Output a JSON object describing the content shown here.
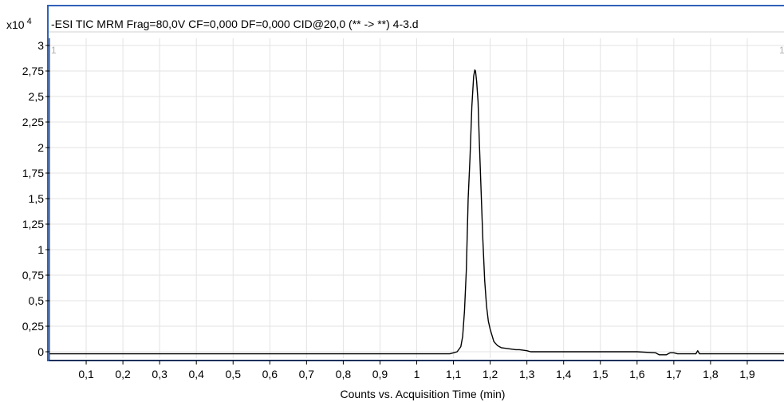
{
  "header": {
    "scale_label": "x10",
    "scale_exponent": "4",
    "title": "-ESI TIC MRM Frag=80,0V CF=0,000 DF=0,000 CID@20,0 (** -> **) 4-3.d",
    "pane_number_left": "1",
    "pane_number_right": "1"
  },
  "colors": {
    "frame_border": "#2f62b8",
    "trace": "#000000",
    "grid": "#e3e3e3",
    "baseline": "#000000"
  },
  "chart_data": {
    "type": "line",
    "title": "-ESI TIC MRM Frag=80,0V CF=0,000 DF=0,000 CID@20,0 (** -> **) 4-3.d",
    "xlabel": "Counts vs. Acquisition Time (min)",
    "ylabel": "",
    "y_multiplier": "x10^4",
    "xlim": [
      0,
      2.0
    ],
    "ylim": [
      -0.05,
      3.0
    ],
    "grid": true,
    "x_ticks": [
      {
        "value": 0.1,
        "label": "0,1"
      },
      {
        "value": 0.2,
        "label": "0,2"
      },
      {
        "value": 0.3,
        "label": "0,3"
      },
      {
        "value": 0.4,
        "label": "0,4"
      },
      {
        "value": 0.5,
        "label": "0,5"
      },
      {
        "value": 0.6,
        "label": "0,6"
      },
      {
        "value": 0.7,
        "label": "0,7"
      },
      {
        "value": 0.8,
        "label": "0,8"
      },
      {
        "value": 0.9,
        "label": "0,9"
      },
      {
        "value": 1.0,
        "label": "1"
      },
      {
        "value": 1.1,
        "label": "1,1"
      },
      {
        "value": 1.2,
        "label": "1,2"
      },
      {
        "value": 1.3,
        "label": "1,3"
      },
      {
        "value": 1.4,
        "label": "1,4"
      },
      {
        "value": 1.5,
        "label": "1,5"
      },
      {
        "value": 1.6,
        "label": "1,6"
      },
      {
        "value": 1.7,
        "label": "1,7"
      },
      {
        "value": 1.8,
        "label": "1,8"
      },
      {
        "value": 1.9,
        "label": "1,9"
      }
    ],
    "y_ticks": [
      {
        "value": 0,
        "label": "0"
      },
      {
        "value": 0.25,
        "label": "0,25"
      },
      {
        "value": 0.5,
        "label": "0,5"
      },
      {
        "value": 0.75,
        "label": "0,75"
      },
      {
        "value": 1.0,
        "label": "1"
      },
      {
        "value": 1.25,
        "label": "1,25"
      },
      {
        "value": 1.5,
        "label": "1,5"
      },
      {
        "value": 1.75,
        "label": "1,75"
      },
      {
        "value": 2.0,
        "label": "2"
      },
      {
        "value": 2.25,
        "label": "2,25"
      },
      {
        "value": 2.5,
        "label": "2,5"
      },
      {
        "value": 2.75,
        "label": "2,75"
      },
      {
        "value": 3.0,
        "label": "3"
      }
    ],
    "series": [
      {
        "x": [
          0.0,
          0.2,
          0.4,
          0.6,
          0.8,
          1.0,
          1.05,
          1.09,
          1.1,
          1.11,
          1.12,
          1.125,
          1.13,
          1.135,
          1.14,
          1.145,
          1.15,
          1.155,
          1.158,
          1.16,
          1.163,
          1.167,
          1.17,
          1.175,
          1.18,
          1.185,
          1.19,
          1.195,
          1.2,
          1.21,
          1.22,
          1.23,
          1.25,
          1.27,
          1.28,
          1.3,
          1.31,
          1.35,
          1.4,
          1.5,
          1.6,
          1.65,
          1.66,
          1.68,
          1.69,
          1.7,
          1.71,
          1.75,
          1.76,
          1.765,
          1.77,
          1.8,
          1.9,
          2.0
        ],
        "y": [
          -0.02,
          -0.02,
          -0.02,
          -0.02,
          -0.02,
          -0.02,
          -0.02,
          -0.02,
          -0.01,
          0.0,
          0.05,
          0.15,
          0.4,
          0.8,
          1.5,
          1.9,
          2.4,
          2.7,
          2.76,
          2.75,
          2.65,
          2.45,
          2.1,
          1.6,
          1.1,
          0.7,
          0.45,
          0.3,
          0.22,
          0.1,
          0.06,
          0.04,
          0.03,
          0.02,
          0.02,
          0.01,
          0.0,
          0.0,
          0.0,
          0.0,
          0.0,
          -0.01,
          -0.03,
          -0.03,
          -0.01,
          -0.01,
          -0.02,
          -0.02,
          -0.02,
          0.01,
          -0.02,
          -0.02,
          -0.02,
          -0.02
        ]
      }
    ]
  }
}
